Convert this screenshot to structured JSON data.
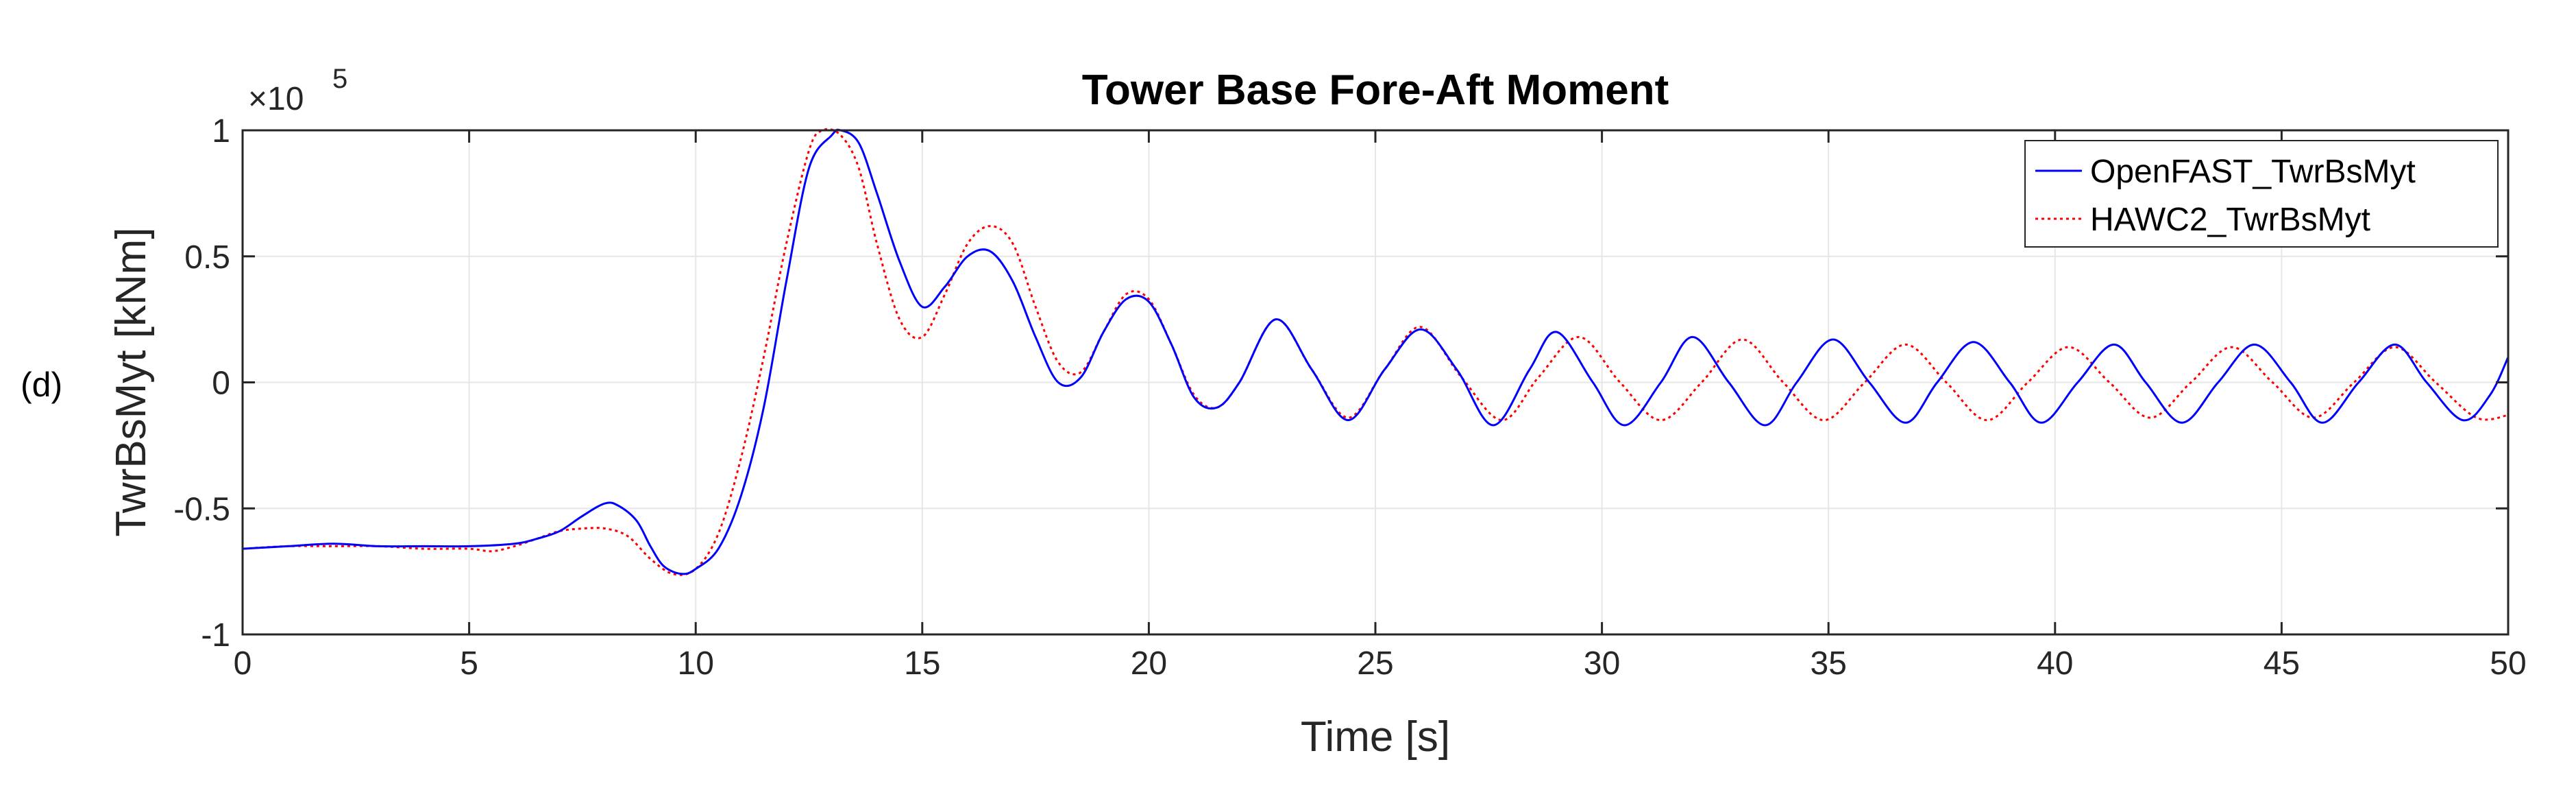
{
  "panel_label": "(d)",
  "exponent": {
    "base": "×10",
    "power": "5"
  },
  "chart_data": {
    "type": "line",
    "title": "Tower Base Fore-Aft Moment",
    "xlabel": "Time [s]",
    "ylabel": "TwrBsMyt [kNm]",
    "xlim": [
      0,
      50
    ],
    "ylim": [
      -1,
      1
    ],
    "y_scale_factor": 100000,
    "xticks": [
      0,
      5,
      10,
      15,
      20,
      25,
      30,
      35,
      40,
      45,
      50
    ],
    "xtick_labels": [
      "0",
      "5",
      "10",
      "15",
      "20",
      "25",
      "30",
      "35",
      "40",
      "45",
      "50"
    ],
    "yticks": [
      -1,
      -0.5,
      0,
      0.5,
      1
    ],
    "ytick_labels": [
      "-1",
      "-0.5",
      "0",
      "0.5",
      "1"
    ],
    "grid": true,
    "legend_position": "top-right",
    "series": [
      {
        "name": "OpenFAST_TwrBsMyt",
        "color": "#0000ff",
        "style": "solid",
        "x": [
          0,
          1,
          2,
          3,
          4,
          5,
          6,
          6.5,
          7,
          7.5,
          8,
          8.3,
          8.7,
          9,
          9.3,
          9.7,
          10,
          10.5,
          11,
          11.5,
          12,
          12.5,
          13,
          13.2,
          13.6,
          14,
          14.5,
          15,
          15.5,
          16,
          16.5,
          17,
          17.5,
          18,
          18.5,
          19,
          19.5,
          20,
          20.5,
          21,
          21.5,
          22,
          22.8,
          23.6,
          24.4,
          25.2,
          26,
          26.8,
          27.6,
          28.4,
          29,
          29.8,
          30.5,
          31.3,
          32,
          32.8,
          33.6,
          34.3,
          35.1,
          35.9,
          36.7,
          37.4,
          38.2,
          39,
          39.7,
          40.5,
          41.3,
          42,
          42.8,
          43.6,
          44.4,
          45.2,
          45.9,
          46.7,
          47.5,
          48.2,
          49,
          49.6,
          50
        ],
        "y": [
          -0.66,
          -0.65,
          -0.64,
          -0.65,
          -0.65,
          -0.65,
          -0.64,
          -0.62,
          -0.59,
          -0.53,
          -0.48,
          -0.49,
          -0.55,
          -0.65,
          -0.73,
          -0.76,
          -0.74,
          -0.66,
          -0.45,
          -0.1,
          0.4,
          0.85,
          0.98,
          1.0,
          0.95,
          0.75,
          0.48,
          0.3,
          0.38,
          0.5,
          0.52,
          0.4,
          0.18,
          0.0,
          0.02,
          0.2,
          0.33,
          0.32,
          0.15,
          -0.06,
          -0.1,
          0.0,
          0.25,
          0.05,
          -0.15,
          0.05,
          0.21,
          0.05,
          -0.17,
          0.05,
          0.2,
          0.0,
          -0.17,
          0.0,
          0.18,
          0.0,
          -0.17,
          0.0,
          0.17,
          0.0,
          -0.16,
          0.0,
          0.16,
          0.0,
          -0.16,
          0.0,
          0.15,
          0.0,
          -0.16,
          0.0,
          0.15,
          0.0,
          -0.16,
          0.0,
          0.15,
          0.0,
          -0.15,
          -0.05,
          0.1
        ]
      },
      {
        "name": "HAWC2_TwrBsMyt",
        "color": "#ff0000",
        "style": "dotted",
        "x": [
          0,
          1,
          2,
          3,
          4,
          5,
          5.5,
          6,
          6.5,
          7,
          7.5,
          8,
          8.5,
          9,
          9.5,
          10,
          10.5,
          11,
          11.5,
          12,
          12.5,
          12.8,
          13.2,
          13.6,
          14,
          14.5,
          15,
          15.5,
          16,
          16.5,
          17,
          17.5,
          18,
          18.5,
          19,
          19.5,
          20,
          20.5,
          21,
          21.5,
          22,
          22.8,
          23.6,
          24.4,
          25.2,
          26,
          26.9,
          27.8,
          28.6,
          29.5,
          30.4,
          31.3,
          32.2,
          33.1,
          34,
          34.9,
          35.8,
          36.7,
          37.6,
          38.5,
          39.4,
          40.3,
          41.2,
          42.1,
          43,
          43.9,
          44.8,
          45.7,
          46.6,
          47.5,
          48.4,
          49.3,
          50
        ],
        "y": [
          -0.66,
          -0.65,
          -0.65,
          -0.65,
          -0.66,
          -0.66,
          -0.67,
          -0.65,
          -0.62,
          -0.59,
          -0.58,
          -0.58,
          -0.61,
          -0.7,
          -0.76,
          -0.74,
          -0.6,
          -0.3,
          0.1,
          0.55,
          0.92,
          1.0,
          0.98,
          0.85,
          0.55,
          0.25,
          0.18,
          0.35,
          0.55,
          0.62,
          0.55,
          0.3,
          0.08,
          0.04,
          0.2,
          0.35,
          0.33,
          0.15,
          -0.05,
          -0.1,
          0.0,
          0.25,
          0.05,
          -0.14,
          0.05,
          0.22,
          0.02,
          -0.15,
          0.02,
          0.18,
          0.0,
          -0.15,
          0.0,
          0.17,
          0.0,
          -0.15,
          0.0,
          0.15,
          0.0,
          -0.15,
          0.0,
          0.14,
          0.0,
          -0.14,
          0.0,
          0.14,
          0.0,
          -0.14,
          0.0,
          0.14,
          0.0,
          -0.14,
          -0.13
        ]
      }
    ]
  }
}
